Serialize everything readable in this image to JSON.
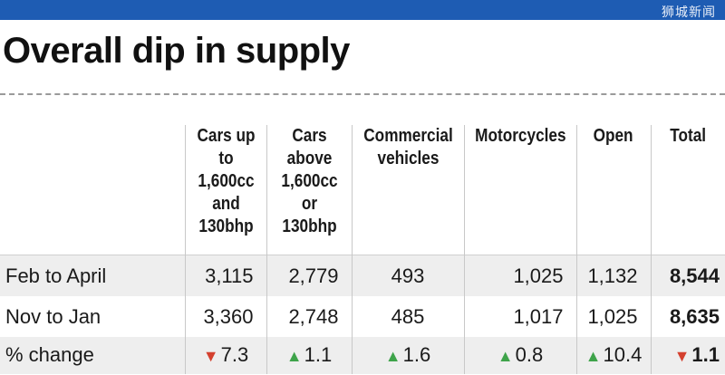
{
  "header": {
    "bar_color": "#1e5cb3",
    "watermark": "狮城新闻",
    "title": "Overall dip in supply"
  },
  "table": {
    "columns": [
      {
        "key": "label",
        "header": ""
      },
      {
        "key": "cars_small",
        "header": "Cars up to 1,600cc and 130bhp"
      },
      {
        "key": "cars_large",
        "header": "Cars above 1,600cc or 130bhp"
      },
      {
        "key": "commercial",
        "header": "Commercial vehicles"
      },
      {
        "key": "motorcycles",
        "header": "Motorcycles"
      },
      {
        "key": "open",
        "header": "Open"
      },
      {
        "key": "total",
        "header": "Total"
      }
    ],
    "rows": [
      {
        "label": "Feb to April",
        "cars_small": "3,115",
        "cars_large": "2,779",
        "commercial": "493",
        "motorcycles": "1,025",
        "open": "1,132",
        "total": "8,544"
      },
      {
        "label": "Nov to Jan",
        "cars_small": "3,360",
        "cars_large": "2,748",
        "commercial": "485",
        "motorcycles": "1,017",
        "open": "1,025",
        "total": "8,635"
      }
    ],
    "change": {
      "label": "% change",
      "cars_small": {
        "dir": "down",
        "value": "7.3"
      },
      "cars_large": {
        "dir": "up",
        "value": "1.1"
      },
      "commercial": {
        "dir": "up",
        "value": "1.6"
      },
      "motorcycles": {
        "dir": "up",
        "value": "0.8"
      },
      "open": {
        "dir": "up",
        "value": "10.4"
      },
      "total": {
        "dir": "down",
        "value": "1.1"
      }
    },
    "colors": {
      "up": "#3ea34a",
      "down": "#d4402e"
    }
  }
}
